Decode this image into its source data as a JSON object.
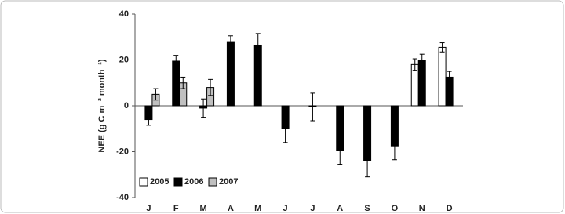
{
  "chart_data": {
    "type": "bar",
    "y_label": "NEE (g C m⁻² month⁻¹)",
    "categories": [
      "J",
      "F",
      "M",
      "A",
      "M",
      "J",
      "J",
      "A",
      "S",
      "O",
      "N",
      "D"
    ],
    "series": [
      {
        "name": "2005",
        "color": "#ffffff",
        "values": [
          null,
          null,
          null,
          null,
          null,
          null,
          null,
          null,
          null,
          null,
          18,
          25.5
        ],
        "errors": [
          null,
          null,
          null,
          null,
          null,
          null,
          null,
          null,
          null,
          null,
          2.5,
          2
        ]
      },
      {
        "name": "2006",
        "color": "#000000",
        "values": [
          -6,
          19.5,
          -1,
          28,
          26.5,
          -10,
          -0.5,
          -19.5,
          -24,
          -17.5,
          20,
          12.5
        ],
        "errors": [
          2.5,
          2.5,
          4,
          2.5,
          5,
          6,
          6,
          6,
          7,
          6,
          2.5,
          2.5
        ]
      },
      {
        "name": "2007",
        "color": "#c0c0c0",
        "values": [
          5,
          10,
          8,
          null,
          null,
          null,
          null,
          null,
          null,
          null,
          null,
          null
        ],
        "errors": [
          2.5,
          2.5,
          3.5,
          null,
          null,
          null,
          null,
          null,
          null,
          null,
          null,
          null
        ]
      }
    ],
    "ylim": [
      -40,
      40
    ],
    "yticks": [
      -40,
      -20,
      0,
      20,
      40
    ],
    "grid": false,
    "legend": "bottom-left"
  }
}
